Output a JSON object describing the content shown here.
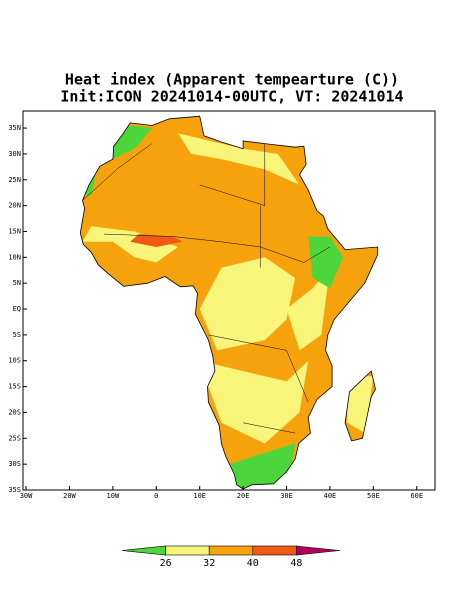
{
  "map": {
    "title": "Heat index (Apparent tempearture (C))",
    "subtitle": "Init:ICON 20241014-00UTC, VT: 20241014",
    "xlim": [
      -30.7,
      64.2
    ],
    "ylim": [
      -35,
      38.3
    ],
    "xticks": [
      {
        "value": -30,
        "label": "30W"
      },
      {
        "value": -20,
        "label": "20W"
      },
      {
        "value": -10,
        "label": "10W"
      },
      {
        "value": 0,
        "label": "0"
      },
      {
        "value": 10,
        "label": "10E"
      },
      {
        "value": 20,
        "label": "20E"
      },
      {
        "value": 30,
        "label": "30E"
      },
      {
        "value": 40,
        "label": "40E"
      },
      {
        "value": 50,
        "label": "50E"
      },
      {
        "value": 60,
        "label": "60E"
      }
    ],
    "yticks": [
      {
        "value": 35,
        "label": "35N"
      },
      {
        "value": 30,
        "label": "30N"
      },
      {
        "value": 25,
        "label": "25N"
      },
      {
        "value": 20,
        "label": "20N"
      },
      {
        "value": 15,
        "label": "15N"
      },
      {
        "value": 10,
        "label": "10N"
      },
      {
        "value": 5,
        "label": "5N"
      },
      {
        "value": 0,
        "label": "EQ"
      },
      {
        "value": -5,
        "label": "5S"
      },
      {
        "value": -10,
        "label": "10S"
      },
      {
        "value": -15,
        "label": "15S"
      },
      {
        "value": -20,
        "label": "20S"
      },
      {
        "value": -25,
        "label": "25S"
      },
      {
        "value": -30,
        "label": "30S"
      },
      {
        "value": -35,
        "label": "35S"
      }
    ],
    "colorbar": {
      "ticks": [
        26,
        32,
        40,
        48
      ],
      "colors": [
        "#4cd63b",
        "#f8f57a",
        "#f5a20d",
        "#f05a14",
        "#b0005a"
      ]
    }
  }
}
